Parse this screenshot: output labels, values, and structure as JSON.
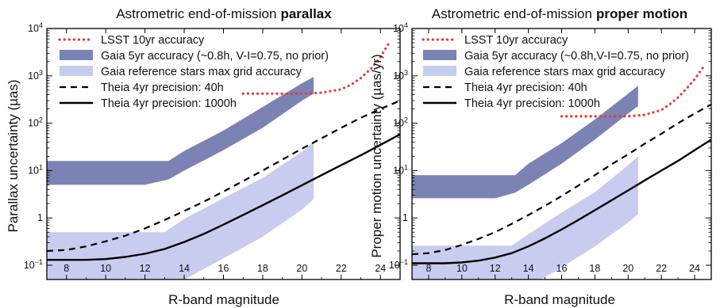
{
  "chart_data": [
    {
      "type": "line",
      "title_main": "Astrometric end-of-mission",
      "title_bold": "parallax",
      "xlabel": "R-band magnitude",
      "ylabel": "Parallax uncertainty (µas)",
      "xlim": [
        7,
        25
      ],
      "ylim": [
        0.05,
        10000
      ],
      "yscale": "log",
      "xticks": [
        "8",
        "10",
        "12",
        "14",
        "16",
        "18",
        "20",
        "22",
        "24"
      ],
      "yticks": [
        "10⁻¹",
        "1",
        "10¹",
        "10²",
        "10³",
        "10⁴"
      ],
      "legend": {
        "position": "top",
        "entries": [
          "LSST 10yr accuracy",
          "Gaia 5yr accuracy (~0.8h, V-I=0.75, no prior)",
          "Gaia reference stars max grid accuracy",
          "Theia 4yr precision: 40h",
          "Theia 4yr precision: 1000h"
        ]
      },
      "series": [
        {
          "name": "LSST 10yr accuracy",
          "style": "dotted",
          "color": "#e53a2f",
          "x": [
            17,
            18,
            19,
            20,
            21,
            22,
            22.5,
            23,
            23.5,
            24,
            24.5
          ],
          "y": [
            420,
            420,
            420,
            420,
            440,
            520,
            650,
            900,
            1400,
            2500,
            5500
          ]
        },
        {
          "name": "Gaia 5yr accuracy (~0.8h, V-I=0.75, no prior)",
          "style": "band",
          "color": "#7b83b5",
          "x": [
            7,
            12,
            13.2,
            14,
            16,
            18,
            20,
            20.6
          ],
          "y_low": [
            5,
            5,
            6.5,
            10,
            27,
            80,
            300,
            420
          ],
          "y_high": [
            16,
            16,
            16,
            26,
            70,
            220,
            700,
            950
          ]
        },
        {
          "name": "Gaia reference stars max grid accuracy",
          "style": "band",
          "color": "#c8ccef",
          "x": [
            7,
            13,
            14,
            16,
            18,
            20,
            20.6
          ],
          "y_low": [
            0.03,
            0.03,
            0.05,
            0.14,
            0.4,
            1.5,
            2.5
          ],
          "y_high": [
            0.5,
            0.5,
            0.95,
            2.6,
            7,
            25,
            40
          ]
        },
        {
          "name": "Theia 4yr precision: 40h",
          "style": "dashed",
          "color": "#000000",
          "x": [
            7,
            8,
            9,
            10,
            11,
            12,
            13,
            14,
            15,
            16,
            17,
            18,
            19,
            20,
            21,
            22,
            23,
            24,
            25
          ],
          "y": [
            0.2,
            0.21,
            0.25,
            0.32,
            0.42,
            0.6,
            0.9,
            1.4,
            2.2,
            3.6,
            6,
            10,
            17,
            29,
            48,
            80,
            130,
            200,
            300
          ]
        },
        {
          "name": "Theia 4yr precision: 1000h",
          "style": "solid",
          "color": "#000000",
          "x": [
            7,
            8,
            9,
            10,
            11,
            12,
            13,
            14,
            15,
            16,
            17,
            18,
            19,
            20,
            21,
            22,
            23,
            24,
            25
          ],
          "y": [
            0.13,
            0.13,
            0.13,
            0.135,
            0.15,
            0.175,
            0.22,
            0.31,
            0.46,
            0.72,
            1.15,
            1.85,
            3,
            4.9,
            8,
            13,
            21,
            35,
            58
          ]
        }
      ]
    },
    {
      "type": "line",
      "title_main": "Astrometric end-of-mission",
      "title_bold": "proper motion",
      "xlabel": "R-band magnitude",
      "ylabel": "Proper motion uncertainty (µas/yr)",
      "xlim": [
        7,
        25
      ],
      "ylim": [
        0.05,
        10000
      ],
      "yscale": "log",
      "xticks": [
        "8",
        "10",
        "12",
        "14",
        "16",
        "18",
        "20",
        "22",
        "24"
      ],
      "yticks": [
        "10⁻¹",
        "1",
        "10¹",
        "10²",
        "10³",
        "10⁴"
      ],
      "legend": {
        "position": "top",
        "entries": [
          "LSST 10yr accuracy",
          "Gaia 5yr accuracy (~0.8h,V-I=0.75, no prior)",
          "Gaia reference stars max grid accuracy",
          "Theia 4yr precision: 40h",
          "Theia 4yr precision: 1000h"
        ]
      },
      "series": [
        {
          "name": "LSST 10yr accuracy",
          "style": "dotted",
          "color": "#e53a2f",
          "x": [
            16,
            17,
            18,
            19,
            20,
            21,
            22,
            22.5,
            23,
            23.5,
            24,
            24.5
          ],
          "y": [
            140,
            140,
            140,
            140,
            140,
            150,
            190,
            250,
            350,
            530,
            850,
            1500
          ]
        },
        {
          "name": "Gaia 5yr accuracy (~0.8h,V-I=0.75, no prior)",
          "style": "band",
          "color": "#7b83b5",
          "x": [
            7,
            12,
            13.2,
            14,
            16,
            18,
            20,
            20.6
          ],
          "y_low": [
            2.6,
            2.6,
            3.4,
            5,
            14,
            45,
            160,
            230
          ],
          "y_high": [
            8,
            8,
            8,
            14,
            38,
            120,
            420,
            620
          ]
        },
        {
          "name": "Gaia reference stars max grid accuracy",
          "style": "band",
          "color": "#c8ccef",
          "x": [
            7,
            13,
            14,
            16,
            18,
            20,
            20.6
          ],
          "y_low": [
            0.02,
            0.02,
            0.035,
            0.09,
            0.25,
            0.8,
            1.2
          ],
          "y_high": [
            0.26,
            0.26,
            0.45,
            1.3,
            3.5,
            13,
            20
          ]
        },
        {
          "name": "Theia 4yr precision: 40h",
          "style": "dashed",
          "color": "#000000",
          "x": [
            7,
            8,
            9,
            10,
            11,
            12,
            13,
            14,
            15,
            16,
            17,
            18,
            19,
            20,
            21,
            22,
            23,
            24,
            25
          ],
          "y": [
            0.17,
            0.18,
            0.21,
            0.27,
            0.36,
            0.5,
            0.75,
            1.15,
            1.8,
            2.9,
            4.8,
            8,
            13.5,
            22,
            37,
            60,
            100,
            160,
            250
          ]
        },
        {
          "name": "Theia 4yr precision: 1000h",
          "style": "solid",
          "color": "#000000",
          "x": [
            7,
            8,
            9,
            10,
            11,
            12,
            13,
            14,
            15,
            16,
            17,
            18,
            19,
            20,
            21,
            22,
            23,
            24,
            25
          ],
          "y": [
            0.11,
            0.11,
            0.11,
            0.115,
            0.125,
            0.145,
            0.18,
            0.25,
            0.37,
            0.57,
            0.9,
            1.45,
            2.35,
            3.8,
            6.2,
            10,
            16,
            27,
            45
          ]
        }
      ]
    }
  ]
}
